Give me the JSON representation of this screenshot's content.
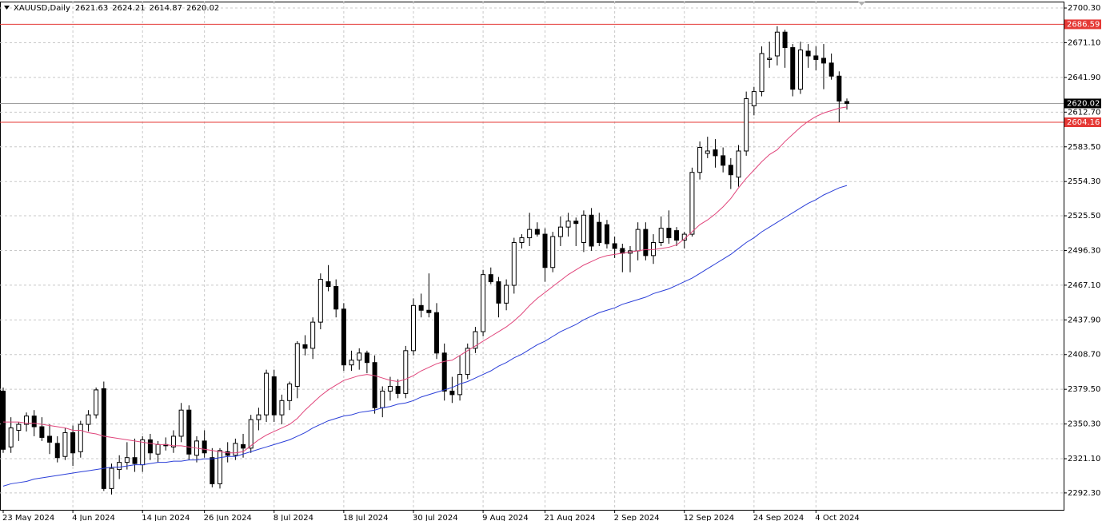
{
  "chart_data": {
    "type": "candlestick",
    "title": "XAUUSD,Daily",
    "categories": [
      "23 May 2024",
      null,
      null,
      null,
      null,
      null,
      null,
      null,
      null,
      "4 Jun 2024",
      null,
      null,
      null,
      null,
      null,
      null,
      null,
      null,
      "14 Jun 2024",
      null,
      null,
      null,
      null,
      null,
      null,
      null,
      "26 Jun 2024",
      null,
      null,
      null,
      null,
      null,
      null,
      null,
      null,
      "8 Jul 2024",
      null,
      null,
      null,
      null,
      null,
      null,
      null,
      null,
      "18 Jul 2024",
      null,
      null,
      null,
      null,
      null,
      null,
      null,
      null,
      "30 Jul 2024",
      null,
      null,
      null,
      null,
      null,
      null,
      null,
      null,
      "9 Aug 2024",
      null,
      null,
      null,
      null,
      null,
      null,
      null,
      "21 Aug 2024",
      null,
      null,
      null,
      null,
      null,
      null,
      null,
      null,
      "2 Sep 2024",
      null,
      null,
      null,
      null,
      null,
      null,
      null,
      null,
      "12 Sep 2024",
      null,
      null,
      null,
      null,
      null,
      null,
      null,
      null,
      "24 Sep 2024",
      null,
      null,
      null,
      null,
      null,
      null,
      null,
      "4 Oct 2024",
      null,
      null,
      null,
      null
    ],
    "series": [
      {
        "up_color": "#ffffff",
        "down_color": "#000000",
        "edge_color": "#000000",
        "open": [
          2378,
          2331,
          2345,
          2350,
          2357,
          2348,
          2340,
          2334,
          2323,
          2343,
          2327,
          2350,
          2358,
          2380,
          2296,
          2312,
          2318,
          2322,
          2316,
          2337,
          2325,
          2333,
          2331,
          2340,
          2362,
          2324,
          2336,
          2322,
          2300,
          2327,
          2324,
          2333,
          2330,
          2354,
          2358,
          2390,
          2358,
          2370,
          2382,
          2417,
          2414,
          2436,
          2470,
          2466,
          2447,
          2400,
          2404,
          2410,
          2402,
          2364,
          2378,
          2382,
          2376,
          2412,
          2450,
          2446,
          2444,
          2410,
          2378,
          2375,
          2392,
          2414,
          2428,
          2476,
          2470,
          2452,
          2467,
          2503,
          2507,
          2514,
          2510,
          2482,
          2508,
          2516,
          2521,
          2503,
          2526,
          2520,
          2518,
          2502,
          2498,
          2494,
          2496,
          2514,
          2492,
          2503,
          2515,
          2513,
          2505,
          2510,
          2562,
          2578,
          2581,
          2576,
          2568,
          2558,
          2580,
          2618,
          2630,
          2657,
          2660,
          2680,
          2667,
          2632,
          2664,
          2660,
          2658,
          2654,
          2643,
          2621.63
        ],
        "high": [
          2381,
          2356,
          2352,
          2360,
          2362,
          2356,
          2350,
          2340,
          2347,
          2349,
          2353,
          2362,
          2381,
          2386,
          2317,
          2324,
          2335,
          2338,
          2340,
          2342,
          2336,
          2339,
          2345,
          2368,
          2366,
          2340,
          2345,
          2330,
          2330,
          2335,
          2338,
          2342,
          2358,
          2364,
          2396,
          2396,
          2375,
          2386,
          2420,
          2425,
          2440,
          2477,
          2484,
          2472,
          2452,
          2412,
          2414,
          2412,
          2408,
          2382,
          2390,
          2388,
          2416,
          2456,
          2460,
          2477,
          2452,
          2418,
          2390,
          2408,
          2418,
          2432,
          2480,
          2482,
          2474,
          2472,
          2507,
          2510,
          2528,
          2520,
          2515,
          2512,
          2525,
          2528,
          2524,
          2530,
          2532,
          2528,
          2522,
          2508,
          2502,
          2500,
          2520,
          2520,
          2510,
          2525,
          2530,
          2516,
          2512,
          2566,
          2588,
          2592,
          2590,
          2583,
          2574,
          2585,
          2630,
          2634,
          2668,
          2672,
          2685,
          2682,
          2670,
          2672,
          2670,
          2668,
          2670,
          2662,
          2647,
          2624.21
        ],
        "low": [
          2326,
          2326,
          2336,
          2344,
          2340,
          2336,
          2325,
          2318,
          2320,
          2315,
          2322,
          2344,
          2355,
          2294,
          2291,
          2304,
          2312,
          2310,
          2310,
          2320,
          2318,
          2328,
          2326,
          2335,
          2320,
          2318,
          2322,
          2297,
          2296,
          2318,
          2320,
          2322,
          2326,
          2345,
          2352,
          2352,
          2350,
          2362,
          2372,
          2408,
          2405,
          2430,
          2462,
          2440,
          2395,
          2395,
          2396,
          2393,
          2359,
          2356,
          2370,
          2372,
          2372,
          2408,
          2440,
          2440,
          2405,
          2370,
          2368,
          2370,
          2388,
          2410,
          2424,
          2468,
          2440,
          2446,
          2460,
          2498,
          2500,
          2508,
          2470,
          2478,
          2500,
          2508,
          2500,
          2495,
          2496,
          2500,
          2498,
          2490,
          2478,
          2478,
          2488,
          2488,
          2485,
          2500,
          2502,
          2500,
          2498,
          2508,
          2556,
          2574,
          2566,
          2562,
          2548,
          2550,
          2576,
          2610,
          2626,
          2650,
          2652,
          2650,
          2626,
          2628,
          2650,
          2648,
          2632,
          2640,
          2604.16,
          2614.87
        ],
        "close": [
          2329,
          2347,
          2350,
          2357,
          2348,
          2339,
          2335,
          2322,
          2343,
          2326,
          2350,
          2358,
          2379,
          2296,
          2313,
          2318,
          2322,
          2317,
          2337,
          2326,
          2333,
          2332,
          2340,
          2362,
          2325,
          2336,
          2326,
          2300,
          2328,
          2324,
          2334,
          2330,
          2354,
          2358,
          2393,
          2358,
          2370,
          2384,
          2418,
          2414,
          2436,
          2472,
          2466,
          2447,
          2400,
          2404,
          2410,
          2402,
          2364,
          2378,
          2382,
          2376,
          2412,
          2450,
          2446,
          2444,
          2410,
          2378,
          2375,
          2392,
          2414,
          2428,
          2476,
          2470,
          2452,
          2467,
          2503,
          2507,
          2514,
          2510,
          2482,
          2508,
          2516,
          2521,
          2519,
          2526,
          2500,
          2503,
          2502,
          2498,
          2494,
          2496,
          2514,
          2492,
          2503,
          2515,
          2507,
          2505,
          2510,
          2562,
          2583,
          2580,
          2576,
          2568,
          2560,
          2580,
          2624,
          2630,
          2662,
          2658,
          2680,
          2667,
          2632,
          2665,
          2660,
          2657,
          2654,
          2643,
          2622,
          2620.02
        ]
      }
    ],
    "lines": [
      {
        "color": "#e0457b",
        "values": [
          2352,
          2352,
          2352,
          2351,
          2351,
          2350,
          2349,
          2348,
          2347,
          2345,
          2345,
          2343,
          2342,
          2340,
          2339,
          2338,
          2337,
          2336,
          2335,
          2334,
          2333,
          2333,
          2332,
          2332,
          2331,
          2330,
          2329,
          2328,
          2327,
          2326,
          2326,
          2327,
          2332,
          2337,
          2341,
          2344,
          2347,
          2350,
          2355,
          2362,
          2368,
          2374,
          2379,
          2383,
          2387,
          2389,
          2391,
          2392,
          2391,
          2389,
          2387,
          2386,
          2388,
          2391,
          2395,
          2398,
          2401,
          2403,
          2404,
          2408,
          2412,
          2416,
          2420,
          2424,
          2428,
          2432,
          2437,
          2443,
          2450,
          2456,
          2461,
          2466,
          2471,
          2476,
          2480,
          2484,
          2487,
          2490,
          2492,
          2493,
          2494,
          2495,
          2496,
          2497,
          2497,
          2498,
          2499,
          2501,
          2506,
          2512,
          2518,
          2522,
          2527,
          2533,
          2540,
          2549,
          2557,
          2564,
          2571,
          2577,
          2581,
          2588,
          2594,
          2600,
          2605,
          2609,
          2612,
          2614,
          2616,
          2617
        ]
      },
      {
        "color": "#2b3fd8",
        "values": [
          2298,
          2300,
          2301,
          2302,
          2304,
          2305,
          2306,
          2307,
          2308,
          2309,
          2310,
          2311,
          2312,
          2313,
          2314,
          2314,
          2315,
          2316,
          2316,
          2317,
          2318,
          2318,
          2319,
          2319,
          2320,
          2320,
          2321,
          2321,
          2322,
          2323,
          2323,
          2325,
          2327,
          2329,
          2331,
          2333,
          2335,
          2337,
          2340,
          2343,
          2347,
          2350,
          2353,
          2355,
          2357,
          2358,
          2360,
          2361,
          2362,
          2364,
          2365,
          2367,
          2368,
          2370,
          2373,
          2375,
          2377,
          2379,
          2381,
          2384,
          2386,
          2389,
          2392,
          2395,
          2399,
          2402,
          2406,
          2409,
          2413,
          2417,
          2420,
          2424,
          2428,
          2431,
          2434,
          2438,
          2441,
          2444,
          2446,
          2448,
          2451,
          2453,
          2455,
          2457,
          2460,
          2462,
          2464,
          2467,
          2470,
          2473,
          2477,
          2481,
          2485,
          2489,
          2493,
          2498,
          2503,
          2507,
          2512,
          2516,
          2520,
          2524,
          2528,
          2532,
          2536,
          2539,
          2543,
          2546,
          2549,
          2551
        ]
      }
    ],
    "hlines": [
      {
        "value": 2686.59,
        "color": "#e53935",
        "label_color": "#e53935"
      },
      {
        "value": 2620.02,
        "color": "#a0a0a0",
        "label_color": "#000000"
      },
      {
        "value": 2604.16,
        "color": "#e53935",
        "label_color": "#e53935"
      }
    ],
    "ylim": [
      2278.1,
      2705.7
    ],
    "yticks": [
      {
        "value": 2700.3,
        "label": "2700.30"
      },
      {
        "value": 2671.1,
        "label": "2671.10"
      },
      {
        "value": 2641.9,
        "label": "2641.90"
      },
      {
        "value": 2612.7,
        "label": "2612.70"
      },
      {
        "value": 2583.5,
        "label": "2583.50"
      },
      {
        "value": 2554.3,
        "label": "2554.30"
      },
      {
        "value": 2525.5,
        "label": "2525.50"
      },
      {
        "value": 2496.3,
        "label": "2496.30"
      },
      {
        "value": 2467.1,
        "label": "2467.10"
      },
      {
        "value": 2437.9,
        "label": "2437.90"
      },
      {
        "value": 2408.7,
        "label": "2408.70"
      },
      {
        "value": 2379.5,
        "label": "2379.50"
      },
      {
        "value": 2350.3,
        "label": "2350.30"
      },
      {
        "value": 2321.1,
        "label": "2321.10"
      },
      {
        "value": 2292.3,
        "label": "2292.30"
      }
    ],
    "grid": true
  }
}
